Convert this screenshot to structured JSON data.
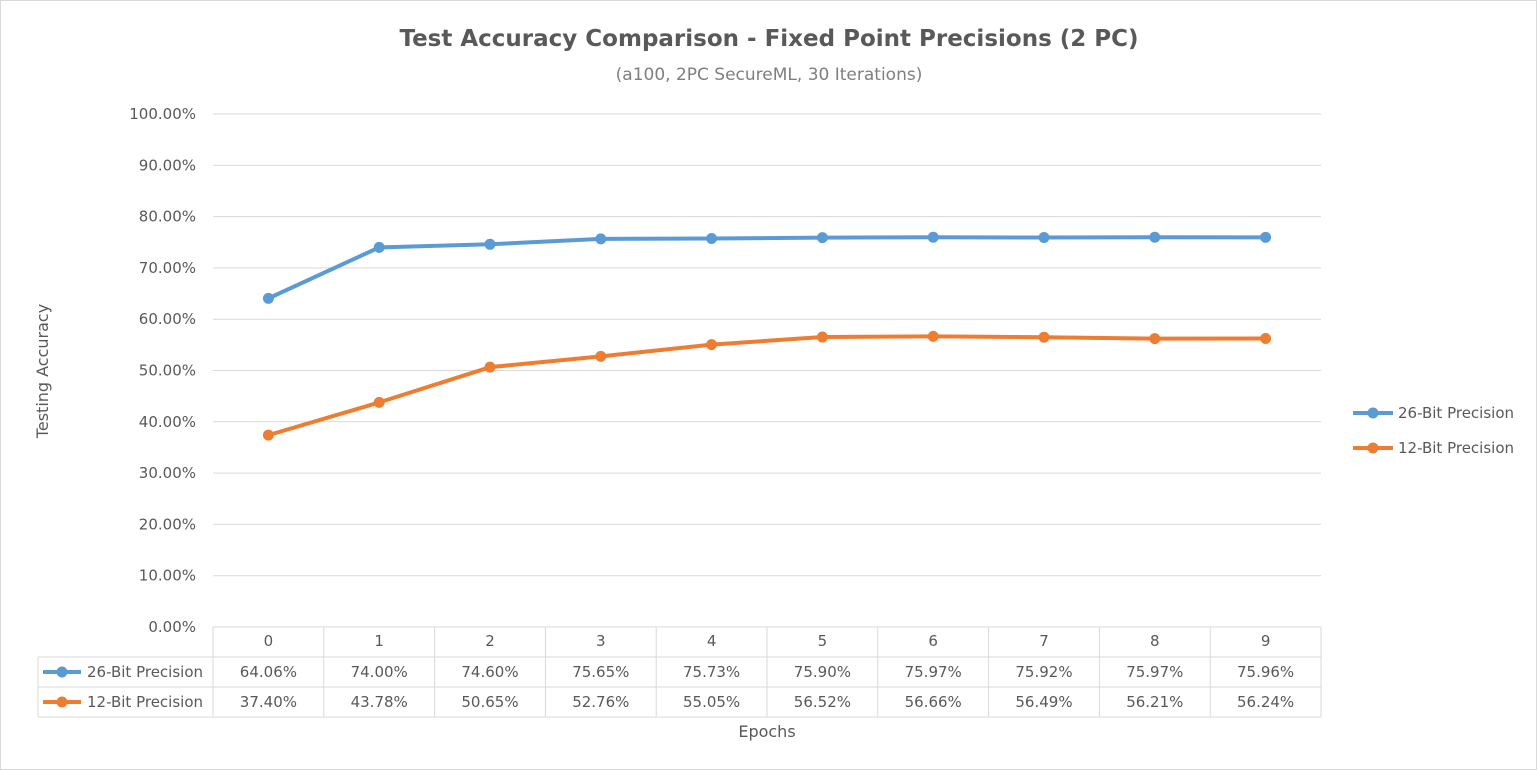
{
  "chart_data": {
    "type": "line",
    "title": "Test Accuracy Comparison - Fixed Point Precisions (2 PC)",
    "subtitle": "(a100, 2PC SecureML, 30 Iterations)",
    "xlabel": "Epochs",
    "ylabel": "Testing Accuracy",
    "categories": [
      "0",
      "1",
      "2",
      "3",
      "4",
      "5",
      "6",
      "7",
      "8",
      "9"
    ],
    "ylim": [
      0,
      100
    ],
    "yticks": [
      "0.00%",
      "10.00%",
      "20.00%",
      "30.00%",
      "40.00%",
      "50.00%",
      "60.00%",
      "70.00%",
      "80.00%",
      "90.00%",
      "100.00%"
    ],
    "grid": true,
    "legend_position": "right",
    "data_table": true,
    "series": [
      {
        "name": "26-Bit Precision",
        "color": "#5b9bd5",
        "values": [
          64.06,
          74.0,
          74.6,
          75.65,
          75.73,
          75.9,
          75.97,
          75.92,
          75.97,
          75.96
        ],
        "labels": [
          "64.06%",
          "74.00%",
          "74.60%",
          "75.65%",
          "75.73%",
          "75.90%",
          "75.97%",
          "75.92%",
          "75.97%",
          "75.96%"
        ]
      },
      {
        "name": "12-Bit Precision",
        "color": "#ed7d31",
        "values": [
          37.4,
          43.78,
          50.65,
          52.76,
          55.05,
          56.52,
          56.66,
          56.49,
          56.21,
          56.24
        ],
        "labels": [
          "37.40%",
          "43.78%",
          "50.65%",
          "52.76%",
          "55.05%",
          "56.52%",
          "56.66%",
          "56.49%",
          "56.21%",
          "56.24%"
        ]
      }
    ]
  }
}
